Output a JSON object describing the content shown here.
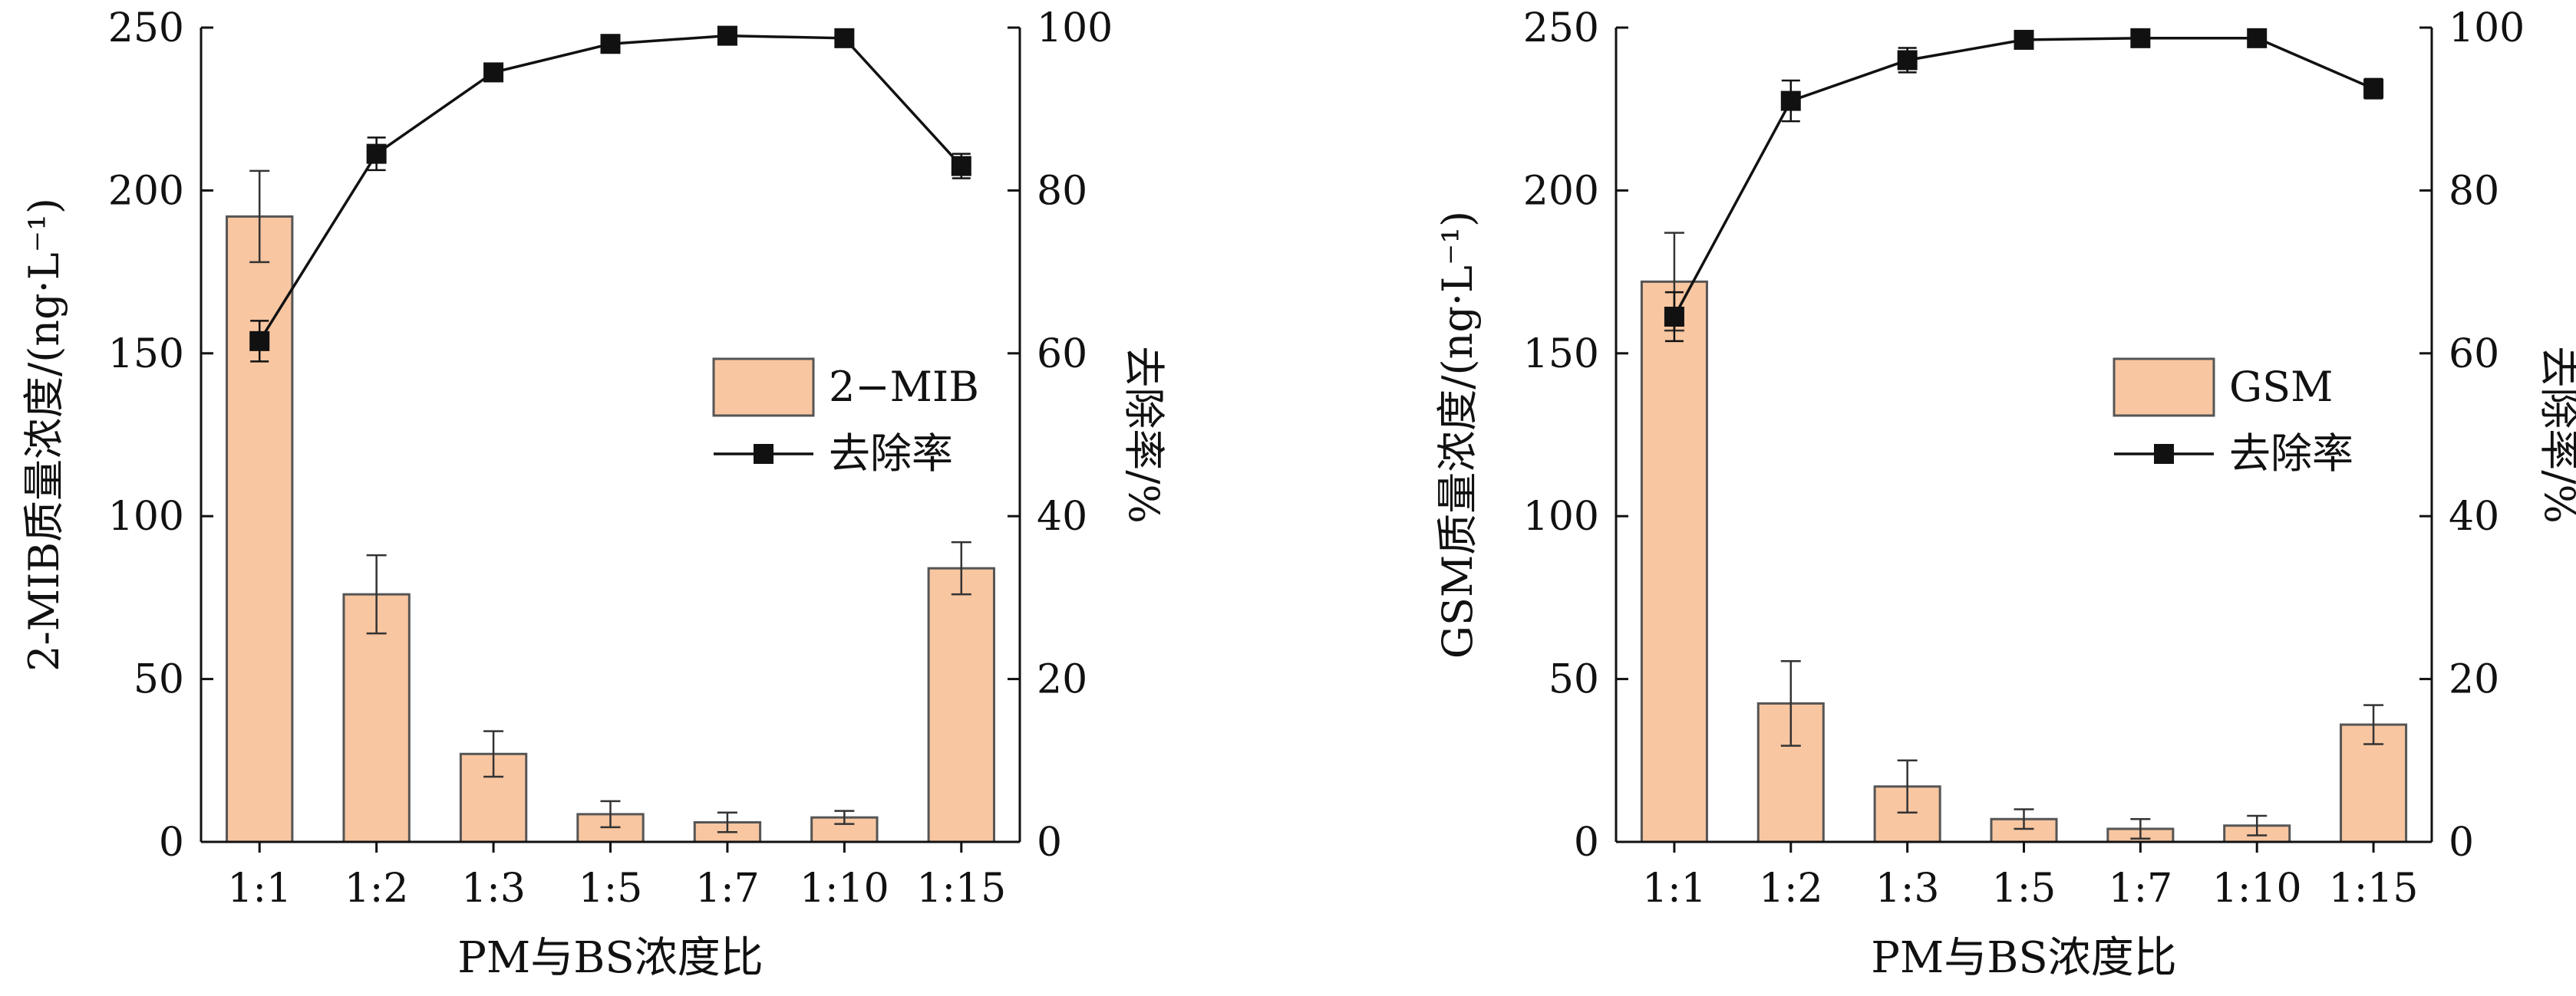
{
  "chart_data": [
    {
      "type": "bar",
      "categories": [
        "1:1",
        "1:2",
        "1:3",
        "1:5",
        "1:7",
        "1:10",
        "1:15"
      ],
      "xlabel": "PM与BS浓度比",
      "ylabel": "2-MIB质量浓度/(ng·L⁻¹)",
      "y2label": "去除率/%",
      "ylim": [
        0,
        250
      ],
      "y2lim": [
        0,
        100
      ],
      "yticks": [
        0,
        50,
        100,
        150,
        200,
        250
      ],
      "y2ticks": [
        0,
        20,
        40,
        60,
        80,
        100
      ],
      "legend_position": "center-right",
      "series": [
        {
          "name": "2−MIB",
          "kind": "bar",
          "values": [
            192,
            76,
            27,
            8.5,
            6,
            7.5,
            84
          ],
          "errors": [
            14,
            12,
            7,
            4,
            3,
            2,
            8
          ]
        },
        {
          "name": "去除率",
          "kind": "line",
          "axis": "right",
          "values": [
            61.5,
            84.5,
            94.5,
            98,
            99,
            98.7,
            83
          ],
          "errors": [
            2.5,
            2,
            1,
            1,
            0.5,
            0.5,
            1.5
          ]
        }
      ],
      "colors": {
        "bar_fill": "#f8c6a1",
        "bar_edge": "#555555",
        "line": "#111111"
      }
    },
    {
      "type": "bar",
      "categories": [
        "1:1",
        "1:2",
        "1:3",
        "1:5",
        "1:7",
        "1:10",
        "1:15"
      ],
      "xlabel": "PM与BS浓度比",
      "ylabel": "GSM质量浓度/(ng·L⁻¹)",
      "y2label": "去除率/%",
      "ylim": [
        0,
        250
      ],
      "y2lim": [
        0,
        100
      ],
      "yticks": [
        0,
        50,
        100,
        150,
        200,
        250
      ],
      "y2ticks": [
        0,
        20,
        40,
        60,
        80,
        100
      ],
      "legend_position": "center-right",
      "series": [
        {
          "name": "GSM",
          "kind": "bar",
          "values": [
            172,
            42.5,
            17,
            7,
            4,
            5,
            36
          ],
          "errors": [
            15,
            13,
            8,
            3,
            3,
            3,
            6
          ]
        },
        {
          "name": "去除率",
          "kind": "line",
          "axis": "right",
          "values": [
            64.5,
            91,
            96,
            98.5,
            98.7,
            98.7,
            92.5
          ],
          "errors": [
            3,
            2.5,
            1.5,
            0.8,
            0.5,
            0.5,
            1.2
          ]
        }
      ],
      "colors": {
        "bar_fill": "#f8c6a1",
        "bar_edge": "#555555",
        "line": "#111111"
      }
    }
  ]
}
